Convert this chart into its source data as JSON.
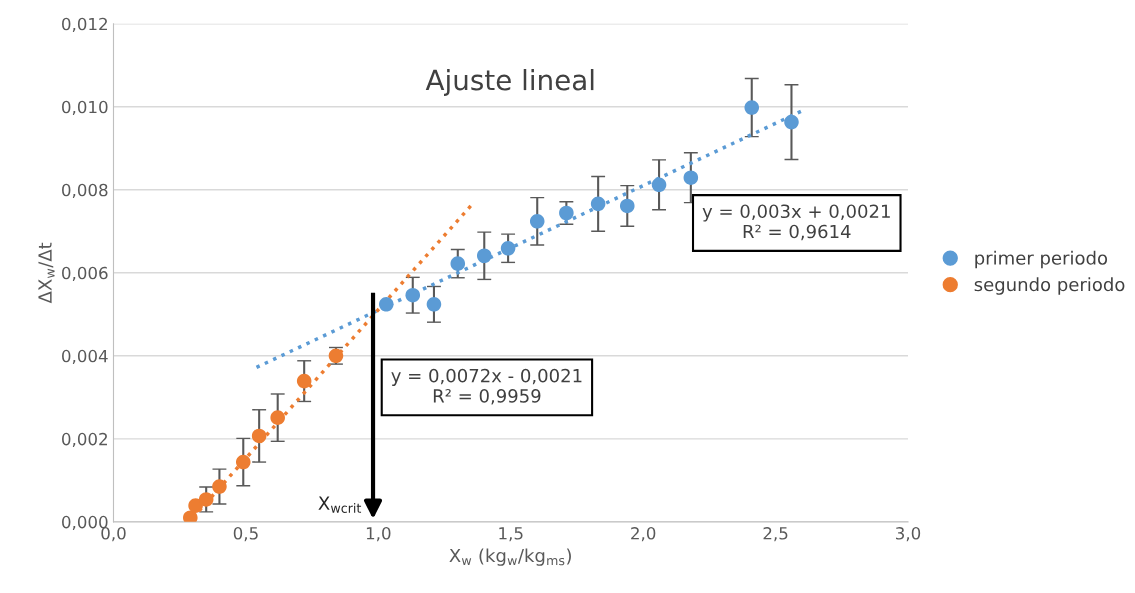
{
  "chart_data": {
    "type": "scatter",
    "title": "Ajuste lineal",
    "xlabel": "X$_{w}$ (kg$_{w}$/kg$_{ms}$)",
    "ylabel": "ΔX$_{w}$/Δt",
    "xlim": [
      0,
      3
    ],
    "ylim": [
      0,
      0.012
    ],
    "xticks": [
      {
        "value": 0,
        "label": "0,0"
      },
      {
        "value": 0.5,
        "label": "0,5"
      },
      {
        "value": 1,
        "label": "1,0"
      },
      {
        "value": 1.5,
        "label": "1,5"
      },
      {
        "value": 2,
        "label": "2,0"
      },
      {
        "value": 2.5,
        "label": "2,5"
      },
      {
        "value": 3,
        "label": "3,0"
      }
    ],
    "yticks": [
      {
        "value": 0,
        "label": "0,000"
      },
      {
        "value": 0.002,
        "label": "0,002"
      },
      {
        "value": 0.004,
        "label": "0,004"
      },
      {
        "value": 0.006,
        "label": "0,006"
      },
      {
        "value": 0.008,
        "label": "0,008"
      },
      {
        "value": 0.01,
        "label": "0,010"
      },
      {
        "value": 0.012,
        "label": "0,012"
      }
    ],
    "grid": "y",
    "legend": "right",
    "series": [
      {
        "name": "primer periodo",
        "marker": "circle",
        "color": "#5b9bd5",
        "x": [
          1.03,
          1.13,
          1.21,
          1.3,
          1.4,
          1.49,
          1.6,
          1.71,
          1.83,
          1.94,
          2.06,
          2.18,
          2.41,
          2.56
        ],
        "values": [
          0.00524,
          0.00546,
          0.00524,
          0.00622,
          0.00641,
          0.00659,
          0.00724,
          0.00744,
          0.00766,
          0.00761,
          0.00812,
          0.00829,
          0.00998,
          0.00963
        ],
        "errors": [
          null,
          0.00043,
          0.00043,
          0.00034,
          0.00057,
          0.00034,
          0.00057,
          0.00027,
          0.00066,
          0.00049,
          0.0006,
          0.0006,
          0.0007,
          0.0009
        ]
      },
      {
        "name": "segundo periodo",
        "marker": "circle",
        "color": "#ed7d31",
        "x": [
          0.29,
          0.31,
          0.35,
          0.4,
          0.49,
          0.55,
          0.62,
          0.72,
          0.84
        ],
        "values": [
          0.0001,
          0.00039,
          0.00054,
          0.00085,
          0.00144,
          0.00207,
          0.00251,
          0.00339,
          0.004
        ],
        "errors": [
          null,
          null,
          0.0003,
          0.00042,
          0.00057,
          0.00063,
          0.00057,
          0.00049,
          0.0002
        ]
      },
      {
        "type": "line",
        "line_style": "dotted",
        "color": "#5b9bd5",
        "x": [
          0.54,
          2.6
        ],
        "values": [
          0.00372,
          0.0099
        ]
      },
      {
        "type": "line",
        "line_style": "dotted",
        "color": "#ed7d31",
        "x": [
          0.3,
          1.36
        ],
        "values": [
          0.0001,
          0.00769
        ]
      }
    ],
    "ref_lines": [
      {
        "axis": "x",
        "value": 0.98,
        "label": "X$_{wcrit}$"
      }
    ],
    "annotations": [
      "y = 0,003x + 0,0021\nR² = 0,9614",
      "y = 0,0072x - 0,0021\nR² = 0,9959"
    ]
  }
}
